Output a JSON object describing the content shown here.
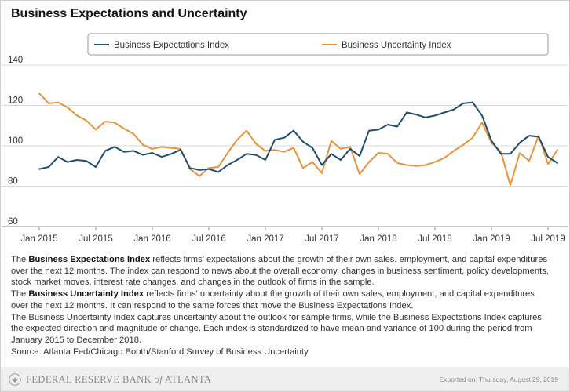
{
  "title": "Business Expectations and Uncertainty",
  "chart_data": {
    "type": "line",
    "title": "Business Expectations and Uncertainty",
    "xlabel": "",
    "ylabel": "",
    "ylim": [
      60,
      140
    ],
    "yticks": [
      60,
      80,
      100,
      120,
      140
    ],
    "xticks": [
      "Jan 2015",
      "Jul 2015",
      "Jan 2016",
      "Jul 2016",
      "Jan 2017",
      "Jul 2017",
      "Jan 2018",
      "Jul 2018",
      "Jan 2019",
      "Jul 2019"
    ],
    "xlim": [
      "Jan 2015",
      "Aug 2019"
    ],
    "grid": "horizontal",
    "legend_position": "top",
    "x": [
      "Jan 2015",
      "Feb 2015",
      "Mar 2015",
      "Apr 2015",
      "May 2015",
      "Jun 2015",
      "Jul 2015",
      "Aug 2015",
      "Sep 2015",
      "Oct 2015",
      "Nov 2015",
      "Dec 2015",
      "Jan 2016",
      "Feb 2016",
      "Mar 2016",
      "Apr 2016",
      "May 2016",
      "Jun 2016",
      "Jul 2016",
      "Aug 2016",
      "Sep 2016",
      "Oct 2016",
      "Nov 2016",
      "Dec 2016",
      "Jan 2017",
      "Feb 2017",
      "Mar 2017",
      "Apr 2017",
      "May 2017",
      "Jun 2017",
      "Jul 2017",
      "Aug 2017",
      "Sep 2017",
      "Oct 2017",
      "Nov 2017",
      "Dec 2017",
      "Jan 2018",
      "Feb 2018",
      "Mar 2018",
      "Apr 2018",
      "May 2018",
      "Jun 2018",
      "Jul 2018",
      "Aug 2018",
      "Sep 2018",
      "Oct 2018",
      "Nov 2018",
      "Dec 2018",
      "Jan 2019",
      "Feb 2019",
      "Mar 2019",
      "Apr 2019",
      "May 2019",
      "Jun 2019",
      "Jul 2019",
      "Aug 2019"
    ],
    "series": [
      {
        "name": "Business Expectations Index",
        "color": "#1f4e6e",
        "values": [
          88.5,
          89.5,
          94.5,
          92,
          93,
          92.5,
          89.5,
          97.5,
          99.5,
          97,
          97.5,
          95.5,
          96.5,
          94.5,
          96,
          98,
          89,
          88,
          88.5,
          87,
          90.5,
          93,
          96,
          95.5,
          93,
          103,
          104,
          107.5,
          102,
          99,
          90.5,
          96,
          93,
          98.5,
          95,
          107.5,
          108,
          110.5,
          109.5,
          116.5,
          115.5,
          114,
          115,
          116.5,
          118,
          121,
          121.5,
          115,
          102.5,
          96,
          96,
          101.5,
          105,
          104.5,
          94.5,
          91.5
        ]
      },
      {
        "name": "Business Uncertainty Index",
        "color": "#e8923a",
        "values": [
          126,
          121,
          121.5,
          119,
          115,
          112.5,
          108,
          112,
          111.5,
          108.5,
          106,
          100.5,
          98.5,
          99.5,
          99,
          98.5,
          88.5,
          85,
          89,
          89.5,
          96.5,
          103,
          107.5,
          101,
          97.5,
          98,
          97,
          99,
          89,
          92,
          86.5,
          102.5,
          98.5,
          99.5,
          86,
          92,
          96.5,
          96,
          91.5,
          90.5,
          90,
          90.5,
          92,
          94,
          97.5,
          100.5,
          104,
          111.5,
          101.5,
          97,
          80.5,
          96.5,
          92.5,
          105,
          91,
          98
        ]
      }
    ]
  },
  "description": {
    "p1": {
      "prefix": "The ",
      "bold": "Business Expectations Index",
      "line1": " reflects firms' expectations about the growth of their own sales, employment, and capital expenditures",
      "line2": "over the next 12 months. The index can respond to news about the overall economy, changes in business sentiment, policy developments,",
      "line3": "stock market moves, interest rate changes, and changes in the outlook of firms in the sample."
    },
    "p2": {
      "prefix": "The ",
      "bold": "Business Uncertainty Index",
      "line1": " reflects firms' uncertainty about the growth of their own sales, employment, and capital expenditures",
      "line2": "over the next 12 months. It can respond to the same forces that move the Business Expectations Index."
    },
    "p3": {
      "line1": "The Business Uncertainty Index captures uncertainty about the outlook for sample firms, while the Business Expectations Index captures",
      "line2": "the expected direction and magnitude of change. Each index is standardized to have mean and variance of 100 during the period from",
      "line3": "January 2015 to December 2018."
    },
    "source": "Source: Atlanta Fed/Chicago Booth/Stanford Survey of Business Uncertainty"
  },
  "footer": {
    "bank_name_prefix": "FEDERAL RESERVE BANK ",
    "bank_name_of": "of",
    "bank_name_suffix": " ATLANTA",
    "exported": "Exported on: Thursday, August 29, 2019"
  },
  "icons": {
    "logo": "eagle-seal-icon"
  }
}
